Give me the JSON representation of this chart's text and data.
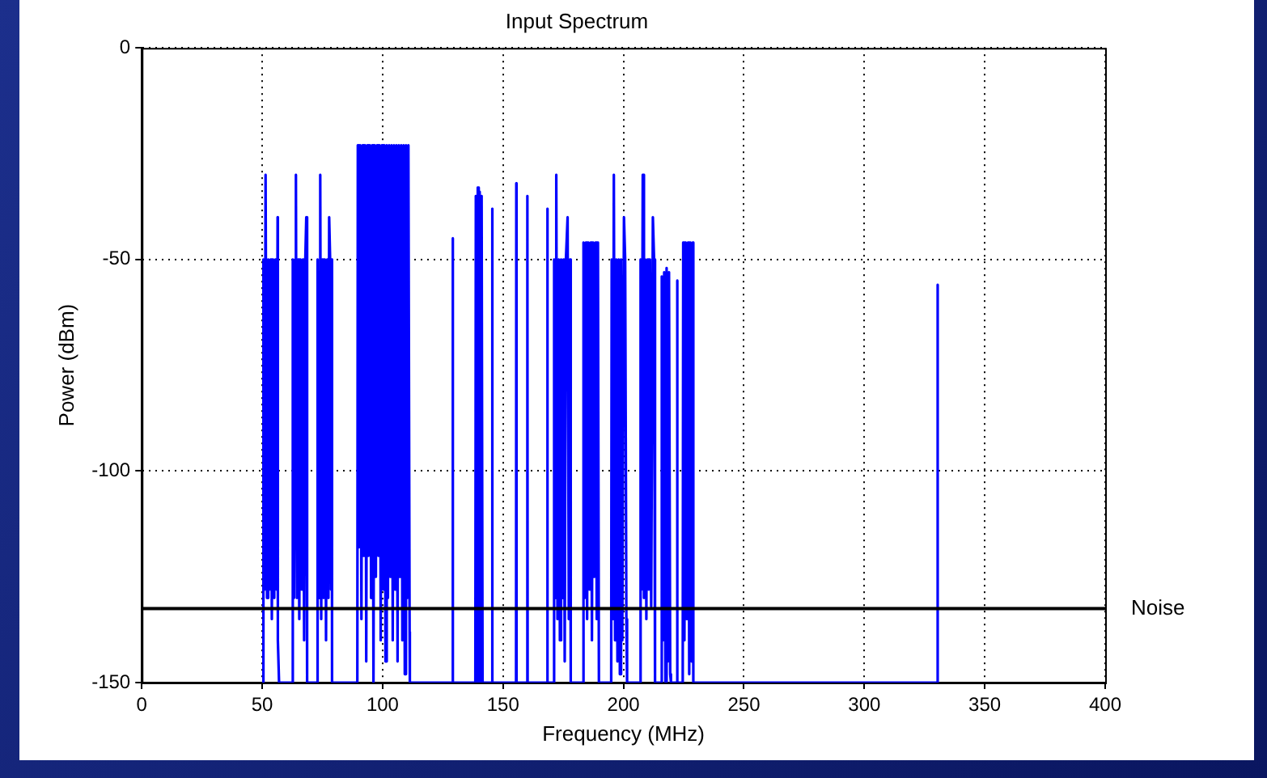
{
  "chart_data": {
    "type": "line",
    "title": "Input Spectrum",
    "xlabel": "Frequency (MHz)",
    "ylabel": "Power (dBm)",
    "xlim": [
      0,
      400
    ],
    "xticks": [
      0,
      50,
      100,
      150,
      200,
      250,
      300,
      350,
      400
    ],
    "ylim": [
      -150,
      0
    ],
    "yticks": [
      -150,
      -100,
      -50,
      0
    ],
    "grid": true,
    "legend": false,
    "marker": "none",
    "line_style": "solid",
    "ref_lines": [
      {
        "axis": "y",
        "value": -132.5,
        "label": "Noise",
        "color": "#000000"
      }
    ],
    "series": [
      {
        "color": "#0000ff",
        "x": [
          50,
          50.5,
          51,
          51.4,
          52,
          52.5,
          53,
          53.5,
          54,
          54.5,
          55,
          55.5,
          56,
          56.4,
          56.5,
          57,
          62.6,
          62.7,
          63.2,
          63.7,
          64,
          64.4,
          64.9,
          65.4,
          65.9,
          66.4,
          66.9,
          67.4,
          67.9,
          68.3,
          68.6,
          68.7,
          72.9,
          73,
          73.5,
          74.1,
          74.5,
          75,
          75.5,
          76,
          76.5,
          77,
          77.5,
          77.8,
          78.2,
          78.6,
          78.9,
          79,
          89.5,
          89.7,
          90.2,
          90.7,
          91.2,
          91.7,
          92.2,
          92.7,
          93.2,
          93.7,
          94.2,
          94.7,
          95.2,
          95.7,
          96.2,
          96.7,
          97.2,
          97.7,
          98.2,
          98.7,
          99.2,
          99.7,
          100.2,
          100.7,
          101.2,
          101.7,
          102.2,
          102.7,
          103.2,
          103.7,
          104.2,
          104.7,
          105.2,
          105.7,
          106.2,
          106.7,
          107.2,
          107.7,
          108.2,
          108.7,
          109.2,
          109.7,
          110.2,
          110.7,
          111.2,
          111.3,
          129,
          129.1,
          129.2,
          138.5,
          138.7,
          139.1,
          139.5,
          139.9,
          140.3,
          140.7,
          141.1,
          141.5,
          141.8,
          145.4,
          145.5,
          145.6,
          155.4,
          155.5,
          155.6,
          160,
          160.1,
          160.2,
          168.3,
          168.4,
          168.5,
          171,
          171.2,
          171.7,
          172.1,
          172.6,
          173.1,
          173.6,
          174.1,
          174.6,
          175.1,
          175.6,
          176.1,
          176.8,
          177.3,
          177.8,
          178.1,
          183.2,
          183.4,
          183.9,
          184.4,
          184.9,
          185.4,
          185.9,
          186.4,
          186.9,
          187.4,
          187.9,
          188.4,
          188.9,
          189.4,
          189.8,
          194.9,
          195.1,
          195.6,
          196,
          196.5,
          197,
          197.5,
          198,
          198.5,
          199,
          199.5,
          200.2,
          200.7,
          201.2,
          201.5,
          206.9,
          207.1,
          207.5,
          208,
          208.5,
          209,
          209.5,
          210,
          210.5,
          211,
          211.5,
          212.2,
          212.7,
          213.1,
          215.7,
          215.9,
          216.4,
          216.9,
          217.4,
          217.9,
          218.4,
          218.9,
          219.4,
          219.7,
          222.2,
          222.3,
          222.4,
          224.6,
          224.8,
          225.3,
          225.8,
          226.3,
          226.8,
          227.3,
          227.8,
          228.3,
          228.8,
          229,
          330.3,
          330.4,
          330.5
        ],
        "values": [
          -150,
          -50,
          -128,
          -30,
          -130,
          -50,
          -128,
          -50,
          -135,
          -50,
          -130,
          -50,
          -128,
          -40,
          -140,
          -150,
          -150,
          -50,
          -130,
          -50,
          -30,
          -130,
          -50,
          -135,
          -50,
          -128,
          -50,
          -140,
          -50,
          -40,
          -140,
          -150,
          -150,
          -50,
          -130,
          -30,
          -135,
          -50,
          -130,
          -50,
          -140,
          -50,
          -130,
          -40,
          -50,
          -128,
          -50,
          -150,
          -150,
          -23,
          -118,
          -23,
          -135,
          -23,
          -120,
          -23,
          -145,
          -23,
          -120,
          -23,
          -130,
          -23,
          -150,
          -23,
          -125,
          -23,
          -120,
          -23,
          -140,
          -23,
          -128,
          -23,
          -145,
          -23,
          -130,
          -23,
          -125,
          -23,
          -140,
          -23,
          -128,
          -23,
          -145,
          -23,
          -125,
          -23,
          -140,
          -23,
          -148,
          -23,
          -130,
          -23,
          -138,
          -150,
          -150,
          -45,
          -150,
          -150,
          -35,
          -150,
          -33,
          -150,
          -34,
          -150,
          -35,
          -150,
          -150,
          -150,
          -38,
          -150,
          -150,
          -32,
          -150,
          -150,
          -35,
          -150,
          -150,
          -38,
          -150,
          -150,
          -50,
          -130,
          -30,
          -135,
          -50,
          -140,
          -50,
          -130,
          -50,
          -145,
          -50,
          -40,
          -135,
          -50,
          -150,
          -150,
          -46,
          -130,
          -46,
          -135,
          -46,
          -128,
          -46,
          -140,
          -46,
          -125,
          -46,
          -135,
          -46,
          -150,
          -150,
          -50,
          -135,
          -30,
          -140,
          -50,
          -145,
          -50,
          -148,
          -50,
          -140,
          -40,
          -50,
          -135,
          -150,
          -150,
          -50,
          -128,
          -30,
          -130,
          -50,
          -135,
          -50,
          -128,
          -50,
          -132,
          -40,
          -50,
          -150,
          -150,
          -54,
          -140,
          -53,
          -150,
          -52,
          -145,
          -53,
          -148,
          -150,
          -150,
          -55,
          -150,
          -150,
          -46,
          -140,
          -46,
          -135,
          -46,
          -148,
          -46,
          -145,
          -46,
          -150,
          -150,
          -56,
          -150
        ]
      }
    ]
  }
}
